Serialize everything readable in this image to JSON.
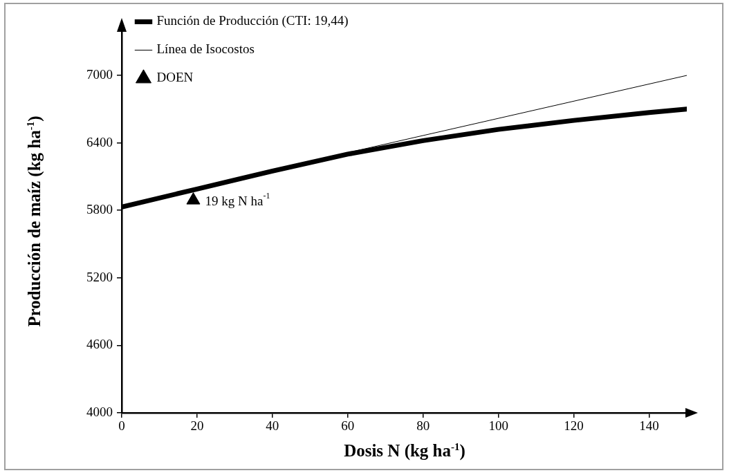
{
  "chart_data": {
    "type": "line",
    "xlabel": "Dosis N (kg ha$^{-1}$)",
    "ylabel": "Producción de maíz (kg ha$^{-1}$)",
    "xlim": [
      0,
      150
    ],
    "ylim": [
      4000,
      7400
    ],
    "xticks": [
      0,
      20,
      40,
      60,
      80,
      100,
      120,
      140
    ],
    "yticks": [
      4000,
      4600,
      5200,
      5800,
      6400,
      7000
    ],
    "grid": false,
    "legend": "top left",
    "series": [
      {
        "name": "Función de Producción (CTI: 19,44)",
        "color": "#000000",
        "x": [
          0,
          20,
          40,
          60,
          80,
          100,
          120,
          140,
          150
        ],
        "values": [
          5830,
          5990,
          6150,
          6300,
          6420,
          6520,
          6600,
          6670,
          6700
        ]
      },
      {
        "name": "Línea de Isocostos",
        "color": "#000000",
        "x": [
          55,
          150
        ],
        "values": [
          6275,
          7000
        ]
      },
      {
        "name": "DOEN",
        "type": "scatter",
        "marker": "triangle",
        "color": "#000000",
        "x": [
          19
        ],
        "values": [
          5890
        ]
      }
    ],
    "annotations": [
      {
        "text": "19 kg N ha$^{-1}$",
        "x": 19,
        "y": 5890
      }
    ]
  }
}
